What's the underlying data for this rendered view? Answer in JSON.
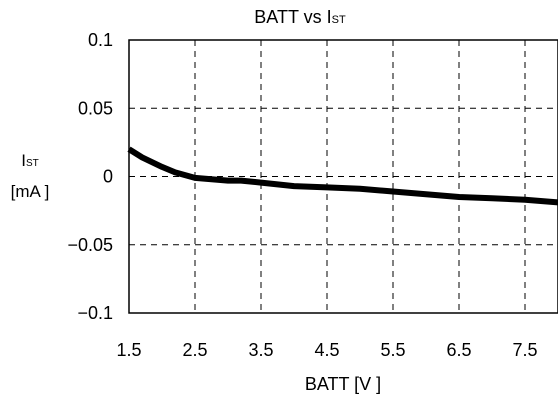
{
  "chart_data": {
    "type": "line",
    "title": "BATT vs I",
    "title_subscript": "ST",
    "xlabel": "BATT [V ]",
    "ylabel_main": "I",
    "ylabel_subscript": "ST",
    "ylabel_unit": "[mA ]",
    "xlim": [
      1.5,
      8.0
    ],
    "ylim": [
      -0.1,
      0.1
    ],
    "x_ticks": [
      1.5,
      2.5,
      3.5,
      4.5,
      5.5,
      6.5,
      7.5
    ],
    "x_tick_labels": [
      "1.5",
      "2.5",
      "3.5",
      "4.5",
      "5.5",
      "6.5",
      "7.5"
    ],
    "y_ticks": [
      0.1,
      0.05,
      0,
      -0.05,
      -0.1
    ],
    "y_tick_labels": [
      "0.1",
      "0.05",
      "0",
      "−0.05",
      "−0.1"
    ],
    "grid": true,
    "series": [
      {
        "color": "#000000",
        "x": [
          1.5,
          1.7,
          2.0,
          2.2,
          2.5,
          3.0,
          3.2,
          3.5,
          4.0,
          4.5,
          5.0,
          5.5,
          6.0,
          6.5,
          7.0,
          7.5,
          8.0
        ],
        "y": [
          0.02,
          0.014,
          0.007,
          0.003,
          -0.001,
          -0.003,
          -0.003,
          -0.0045,
          -0.007,
          -0.008,
          -0.009,
          -0.011,
          -0.013,
          -0.015,
          -0.016,
          -0.017,
          -0.019
        ]
      }
    ]
  }
}
